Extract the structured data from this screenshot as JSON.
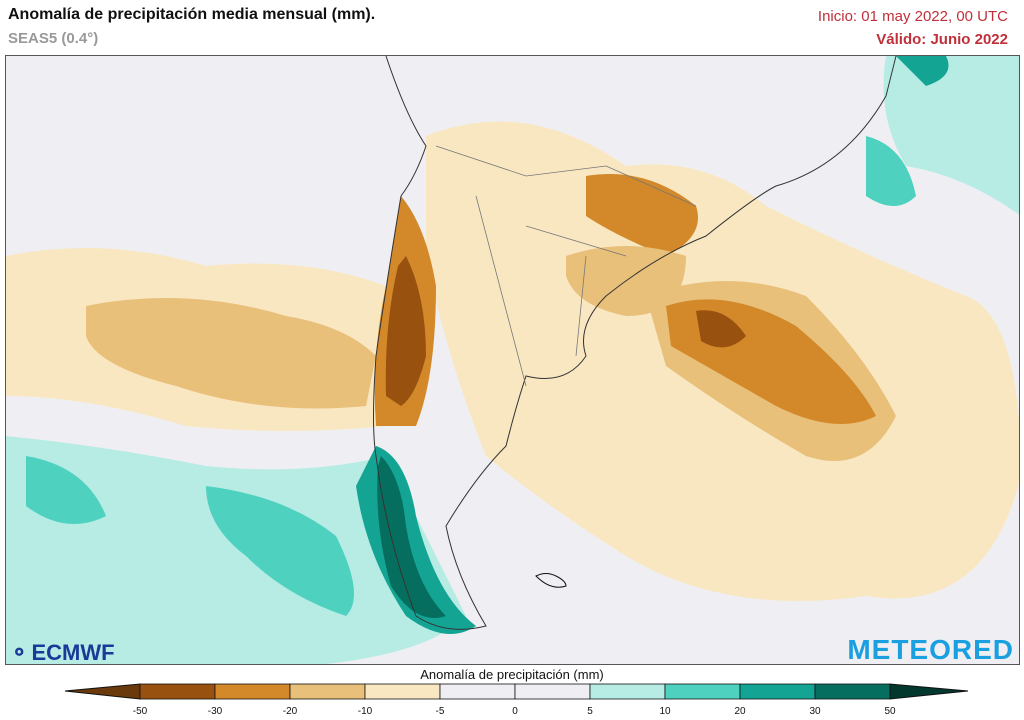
{
  "header": {
    "title": "Anomalía de precipitación media mensual (mm).",
    "subtitle": "SEAS5 (0.4°)",
    "init": "Inicio: 01 may 2022, 00 UTC",
    "valid": "Válido: Junio 2022"
  },
  "logos": {
    "left": "ECMWF",
    "right": "METEORED"
  },
  "colorbar": {
    "title": "Anomalía de precipitación (mm)",
    "ticks": [
      "-50",
      "-30",
      "-20",
      "-10",
      "-5",
      "0",
      "5",
      "10",
      "20",
      "30",
      "50"
    ],
    "colors": [
      "#6b3a0c",
      "#98510f",
      "#d3892a",
      "#e8c07a",
      "#f9e7c2",
      "#efeff3",
      "#efeff3",
      "#b6ece3",
      "#4fd1c0",
      "#13a494",
      "#066e5e",
      "#03382f"
    ]
  },
  "map": {
    "colors": {
      "ocean_neutral": "#efeff3",
      "border": "#333333",
      "internal_border": "#888888"
    }
  }
}
